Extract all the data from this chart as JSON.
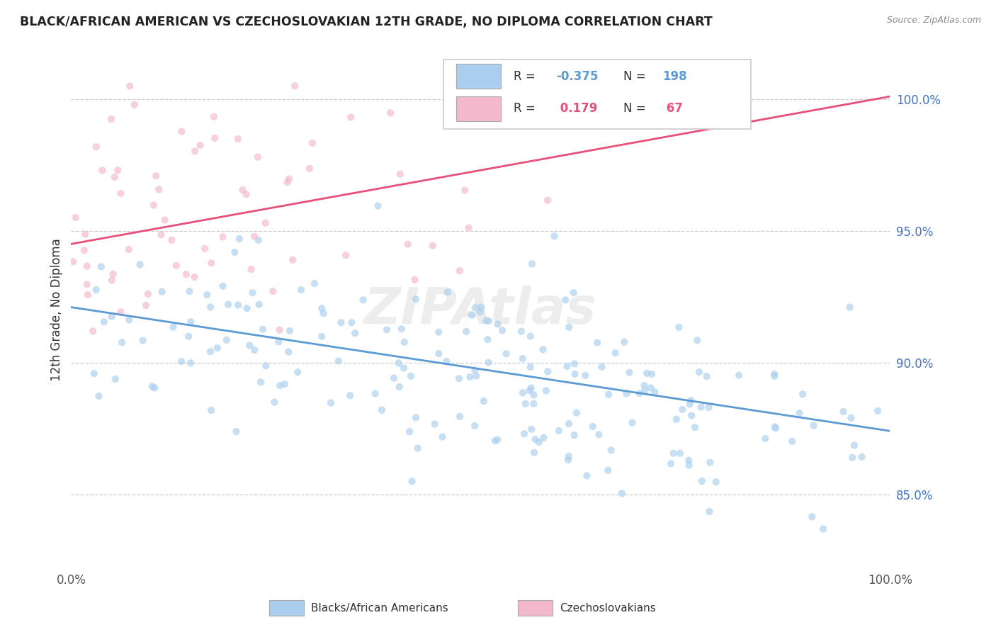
{
  "title": "BLACK/AFRICAN AMERICAN VS CZECHOSLOVAKIAN 12TH GRADE, NO DIPLOMA CORRELATION CHART",
  "source": "Source: ZipAtlas.com",
  "ylabel": "12th Grade, No Diploma",
  "xlim": [
    0.0,
    1.0
  ],
  "ylim": [
    0.822,
    1.018
  ],
  "watermark": "ZIPAtlas",
  "legend_entries": [
    {
      "label": "Blacks/African Americans",
      "color": "#aacfee",
      "R_text": "R = ",
      "R_val": "-0.375",
      "N_text": "N = ",
      "N_val": "198",
      "line_color": "#5b9bd5"
    },
    {
      "label": "Czechoslovakians",
      "color": "#f4b8cc",
      "R_text": "R =  ",
      "R_val": " 0.179",
      "N_text": "N = ",
      "N_val": " 67",
      "line_color": "#e8507a"
    }
  ],
  "ytick_vals": [
    0.85,
    0.9,
    0.95,
    1.0
  ],
  "ytick_labels": [
    "85.0%",
    "90.0%",
    "95.0%",
    "100.0%"
  ],
  "xtick_vals": [
    0.0,
    1.0
  ],
  "xtick_labels": [
    "0.0%",
    "100.0%"
  ],
  "blue_line_y_start": 0.921,
  "blue_line_y_end": 0.874,
  "pink_line_y_start": 0.945,
  "pink_line_y_end": 1.001,
  "scatter_size": 55,
  "scatter_alpha": 0.65,
  "blue_color": "#aacfee",
  "pink_color": "#f4b8cc",
  "blue_line_color": "#5b9bd5",
  "pink_line_color": "#e8507a",
  "grid_color": "#cccccc",
  "background_color": "#ffffff",
  "blue_seed": 10,
  "pink_seed": 20
}
